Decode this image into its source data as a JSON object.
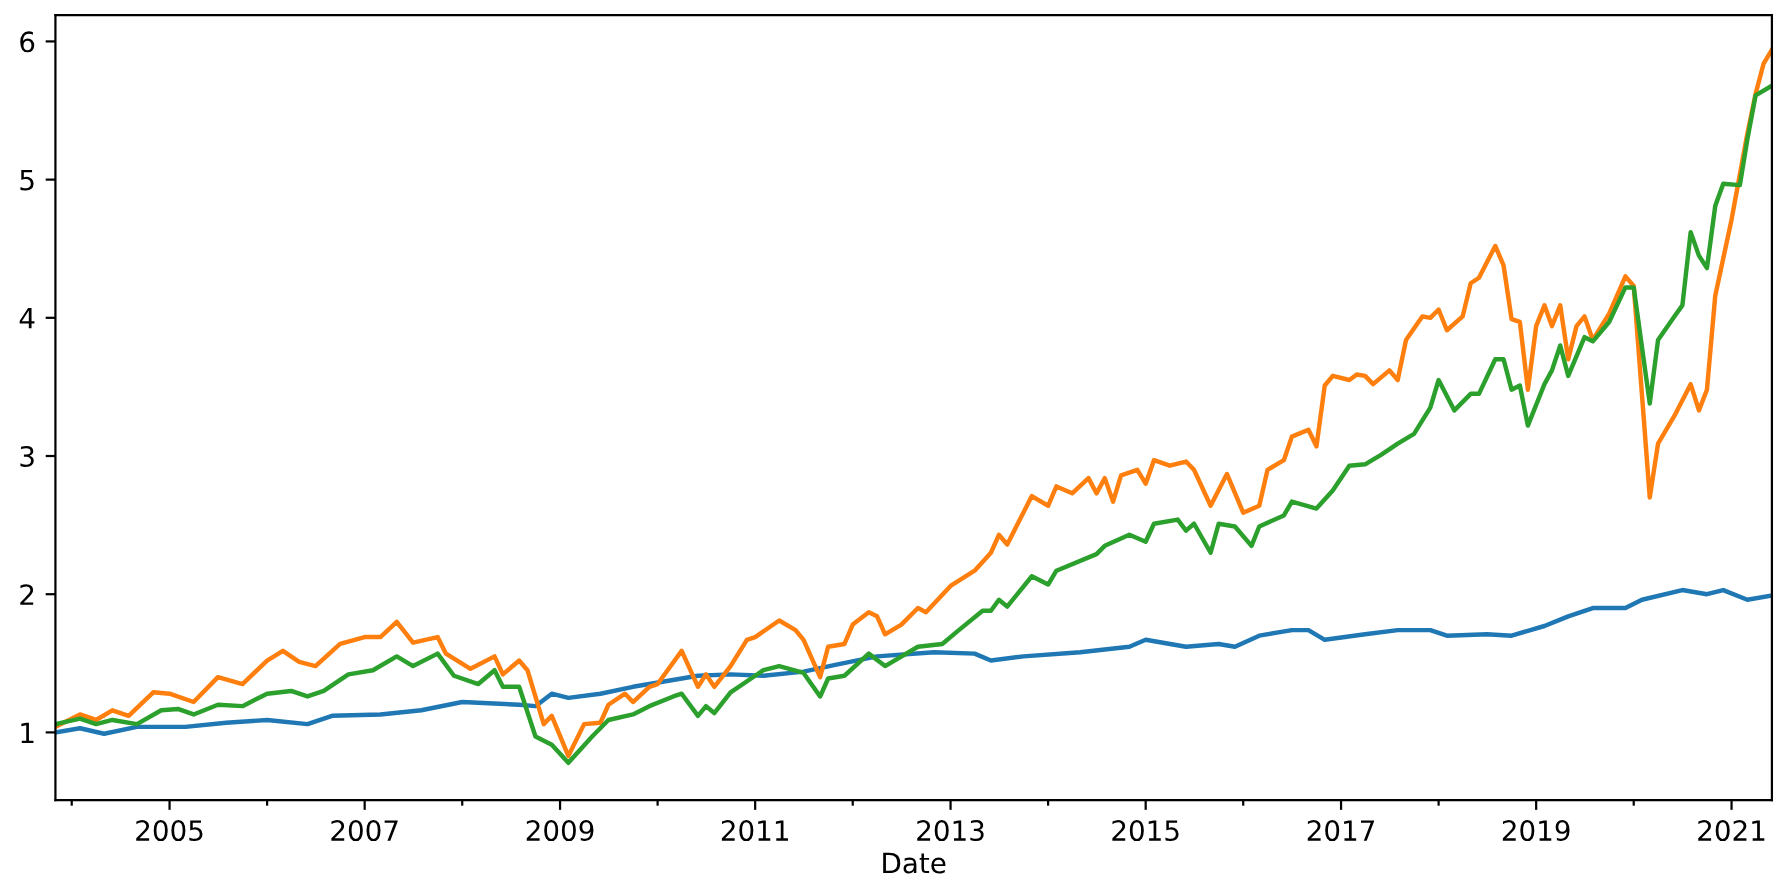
{
  "chart_data": {
    "type": "line",
    "xlabel": "Date",
    "xlim": [
      "2003-11",
      "2021-06"
    ],
    "ylim": [
      0.51,
      6.19
    ],
    "xticks": [
      {
        "value": "2004",
        "label": null
      },
      {
        "value": "2005",
        "label": "2005"
      },
      {
        "value": "2006",
        "label": null
      },
      {
        "value": "2007",
        "label": "2007"
      },
      {
        "value": "2008",
        "label": null
      },
      {
        "value": "2009",
        "label": "2009"
      },
      {
        "value": "2010",
        "label": null
      },
      {
        "value": "2011",
        "label": "2011"
      },
      {
        "value": "2012",
        "label": null
      },
      {
        "value": "2013",
        "label": "2013"
      },
      {
        "value": "2014",
        "label": null
      },
      {
        "value": "2015",
        "label": "2015"
      },
      {
        "value": "2016",
        "label": null
      },
      {
        "value": "2017",
        "label": "2017"
      },
      {
        "value": "2018",
        "label": null
      },
      {
        "value": "2019",
        "label": "2019"
      },
      {
        "value": "2020",
        "label": null
      },
      {
        "value": "2021",
        "label": "2021"
      }
    ],
    "yticks": [
      1,
      2,
      3,
      4,
      5,
      6
    ],
    "grid": false,
    "marker": "none",
    "line_style": "solid",
    "series": [
      {
        "color": "#1f77b4",
        "x": [
          "2003-11",
          "2004-02",
          "2004-05",
          "2004-09",
          "2005-03",
          "2005-08",
          "2006-01",
          "2006-06",
          "2006-09",
          "2007-03",
          "2007-08",
          "2008-01",
          "2008-08",
          "2008-10",
          "2008-12",
          "2009-02",
          "2009-06",
          "2009-10",
          "2010-06",
          "2010-10",
          "2011-02",
          "2011-07",
          "2011-11",
          "2012-04",
          "2012-11",
          "2013-04",
          "2013-06",
          "2013-10",
          "2014-05",
          "2014-11",
          "2015-01",
          "2015-06",
          "2015-10",
          "2015-12",
          "2016-03",
          "2016-07",
          "2016-09",
          "2016-11",
          "2017-04",
          "2017-08",
          "2017-12",
          "2018-02",
          "2018-07",
          "2018-10",
          "2019-02",
          "2019-05",
          "2019-08",
          "2019-12",
          "2020-02",
          "2020-07",
          "2020-10",
          "2020-12",
          "2021-03",
          "2021-06"
        ],
        "values": [
          1.0,
          1.03,
          0.99,
          1.04,
          1.04,
          1.07,
          1.09,
          1.06,
          1.12,
          1.13,
          1.16,
          1.22,
          1.2,
          1.19,
          1.28,
          1.25,
          1.28,
          1.33,
          1.41,
          1.42,
          1.41,
          1.44,
          1.49,
          1.55,
          1.58,
          1.57,
          1.52,
          1.55,
          1.58,
          1.62,
          1.67,
          1.62,
          1.64,
          1.62,
          1.7,
          1.74,
          1.74,
          1.67,
          1.71,
          1.74,
          1.74,
          1.7,
          1.71,
          1.7,
          1.77,
          1.84,
          1.9,
          1.9,
          1.96,
          2.03,
          2.0,
          2.03,
          1.96,
          1.99
        ]
      },
      {
        "color": "#ff7f0e",
        "x": [
          "2003-11",
          "2004-02",
          "2004-04",
          "2004-06",
          "2004-08",
          "2004-11",
          "2005-01",
          "2005-04",
          "2005-07",
          "2005-10",
          "2006-01",
          "2006-03",
          "2006-05",
          "2006-07",
          "2006-10",
          "2007-01",
          "2007-03",
          "2007-05",
          "2007-07",
          "2007-10",
          "2007-11",
          "2008-02",
          "2008-05",
          "2008-06",
          "2008-08",
          "2008-09",
          "2008-11",
          "2008-12",
          "2009-02",
          "2009-04",
          "2009-06",
          "2009-07",
          "2009-09",
          "2009-10",
          "2009-12",
          "2010-01",
          "2010-04",
          "2010-06",
          "2010-07",
          "2010-08",
          "2010-10",
          "2010-12",
          "2011-01",
          "2011-04",
          "2011-06",
          "2011-07",
          "2011-09",
          "2011-10",
          "2011-12",
          "2012-01",
          "2012-03",
          "2012-04",
          "2012-05",
          "2012-07",
          "2012-09",
          "2012-10",
          "2013-01",
          "2013-04",
          "2013-06",
          "2013-07",
          "2013-08",
          "2013-11",
          "2014-01",
          "2014-02",
          "2014-04",
          "2014-06",
          "2014-07",
          "2014-08",
          "2014-09",
          "2014-10",
          "2014-12",
          "2015-01",
          "2015-02",
          "2015-04",
          "2015-06",
          "2015-07",
          "2015-09",
          "2015-11",
          "2016-01",
          "2016-03",
          "2016-04",
          "2016-06",
          "2016-07",
          "2016-09",
          "2016-10",
          "2016-11",
          "2016-12",
          "2017-02",
          "2017-03",
          "2017-04",
          "2017-05",
          "2017-07",
          "2017-08",
          "2017-09",
          "2017-11",
          "2017-12",
          "2018-01",
          "2018-02",
          "2018-04",
          "2018-05",
          "2018-06",
          "2018-08",
          "2018-09",
          "2018-10",
          "2018-11",
          "2018-12",
          "2019-01",
          "2019-02",
          "2019-03",
          "2019-04",
          "2019-05",
          "2019-06",
          "2019-07",
          "2019-08",
          "2019-10",
          "2019-12",
          "2020-01",
          "2020-03",
          "2020-04",
          "2020-06",
          "2020-08",
          "2020-09",
          "2020-10",
          "2020-11",
          "2021-01",
          "2021-03",
          "2021-04",
          "2021-05",
          "2021-06"
        ],
        "values": [
          1.04,
          1.13,
          1.09,
          1.16,
          1.12,
          1.29,
          1.28,
          1.22,
          1.4,
          1.35,
          1.52,
          1.59,
          1.51,
          1.48,
          1.64,
          1.69,
          1.69,
          1.8,
          1.65,
          1.69,
          1.57,
          1.46,
          1.55,
          1.42,
          1.52,
          1.45,
          1.06,
          1.12,
          0.83,
          1.06,
          1.07,
          1.2,
          1.28,
          1.22,
          1.33,
          1.35,
          1.59,
          1.33,
          1.42,
          1.33,
          1.48,
          1.67,
          1.69,
          1.81,
          1.74,
          1.67,
          1.4,
          1.62,
          1.64,
          1.78,
          1.87,
          1.84,
          1.71,
          1.78,
          1.9,
          1.87,
          2.06,
          2.17,
          2.3,
          2.43,
          2.36,
          2.71,
          2.64,
          2.78,
          2.73,
          2.84,
          2.73,
          2.84,
          2.67,
          2.86,
          2.9,
          2.8,
          2.97,
          2.93,
          2.96,
          2.9,
          2.64,
          2.87,
          2.59,
          2.64,
          2.9,
          2.97,
          3.14,
          3.19,
          3.07,
          3.51,
          3.58,
          3.55,
          3.59,
          3.58,
          3.52,
          3.62,
          3.55,
          3.84,
          4.01,
          4.0,
          4.06,
          3.91,
          4.01,
          4.25,
          4.29,
          4.52,
          4.38,
          3.99,
          3.97,
          3.48,
          3.94,
          4.09,
          3.94,
          4.09,
          3.7,
          3.94,
          4.01,
          3.84,
          4.03,
          4.3,
          4.23,
          2.7,
          3.09,
          3.29,
          3.52,
          3.33,
          3.48,
          4.16,
          4.71,
          5.33,
          5.62,
          5.84,
          5.94
        ]
      },
      {
        "color": "#2ca02c",
        "x": [
          "2003-11",
          "2004-02",
          "2004-04",
          "2004-06",
          "2004-09",
          "2004-12",
          "2005-02",
          "2005-04",
          "2005-07",
          "2005-10",
          "2006-01",
          "2006-04",
          "2006-06",
          "2006-08",
          "2006-11",
          "2007-02",
          "2007-05",
          "2007-07",
          "2007-10",
          "2007-12",
          "2008-03",
          "2008-05",
          "2008-06",
          "2008-08",
          "2008-10",
          "2008-12",
          "2009-02",
          "2009-05",
          "2009-07",
          "2009-10",
          "2009-12",
          "2010-03",
          "2010-04",
          "2010-06",
          "2010-07",
          "2010-08",
          "2010-10",
          "2011-01",
          "2011-02",
          "2011-04",
          "2011-07",
          "2011-09",
          "2011-10",
          "2011-12",
          "2012-03",
          "2012-05",
          "2012-09",
          "2012-12",
          "2013-02",
          "2013-05",
          "2013-06",
          "2013-07",
          "2013-08",
          "2013-11",
          "2014-01",
          "2014-02",
          "2014-07",
          "2014-08",
          "2014-11",
          "2015-01",
          "2015-02",
          "2015-05",
          "2015-06",
          "2015-07",
          "2015-09",
          "2015-10",
          "2015-12",
          "2016-02",
          "2016-03",
          "2016-06",
          "2016-07",
          "2016-10",
          "2016-12",
          "2017-02",
          "2017-04",
          "2017-06",
          "2017-08",
          "2017-10",
          "2017-12",
          "2018-01",
          "2018-03",
          "2018-05",
          "2018-06",
          "2018-08",
          "2018-09",
          "2018-10",
          "2018-11",
          "2018-12",
          "2019-02",
          "2019-03",
          "2019-04",
          "2019-05",
          "2019-07",
          "2019-08",
          "2019-10",
          "2019-12",
          "2020-01",
          "2020-03",
          "2020-04",
          "2020-06",
          "2020-07",
          "2020-08",
          "2020-09",
          "2020-10",
          "2020-11",
          "2020-12",
          "2021-02",
          "2021-03",
          "2021-04",
          "2021-06"
        ],
        "values": [
          1.06,
          1.1,
          1.06,
          1.09,
          1.06,
          1.16,
          1.17,
          1.13,
          1.2,
          1.19,
          1.28,
          1.3,
          1.26,
          1.3,
          1.42,
          1.45,
          1.55,
          1.48,
          1.57,
          1.41,
          1.35,
          1.45,
          1.33,
          1.33,
          0.97,
          0.91,
          0.78,
          0.97,
          1.09,
          1.13,
          1.19,
          1.26,
          1.28,
          1.12,
          1.19,
          1.14,
          1.29,
          1.41,
          1.45,
          1.48,
          1.43,
          1.26,
          1.39,
          1.41,
          1.57,
          1.48,
          1.62,
          1.64,
          1.74,
          1.88,
          1.88,
          1.96,
          1.91,
          2.13,
          2.07,
          2.17,
          2.29,
          2.35,
          2.43,
          2.38,
          2.51,
          2.54,
          2.46,
          2.51,
          2.3,
          2.51,
          2.49,
          2.35,
          2.49,
          2.57,
          2.67,
          2.62,
          2.75,
          2.93,
          2.94,
          3.01,
          3.09,
          3.16,
          3.35,
          3.55,
          3.33,
          3.45,
          3.45,
          3.7,
          3.7,
          3.48,
          3.51,
          3.22,
          3.52,
          3.62,
          3.8,
          3.58,
          3.86,
          3.83,
          3.97,
          4.22,
          4.22,
          3.38,
          3.84,
          4.01,
          4.09,
          4.62,
          4.45,
          4.36,
          4.81,
          4.97,
          4.96,
          5.29,
          5.61,
          5.68
        ]
      }
    ]
  }
}
